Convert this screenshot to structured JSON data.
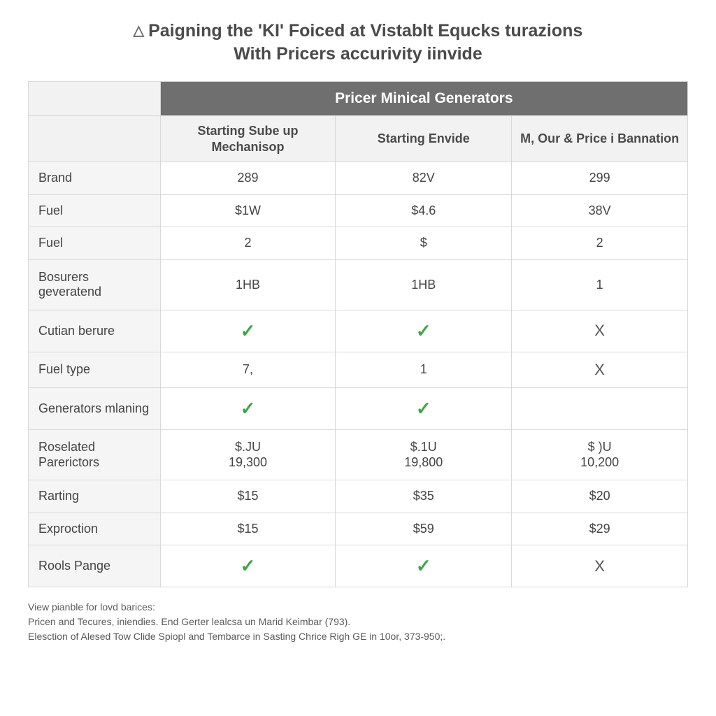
{
  "title": {
    "line1": "Paigning the 'KI' Foiced at Vistablt Equcks turazions",
    "line2": "With Pricers accurivity iinvide",
    "icon_name": "warning-triangle"
  },
  "table": {
    "type": "table",
    "colors": {
      "background": "#ffffff",
      "super_header_bg": "#6f6f6f",
      "super_header_text": "#ffffff",
      "sub_header_bg": "#f2f2f2",
      "rowlabel_bg": "#f5f5f5",
      "border": "#d9d9d9",
      "body_text": "#444444",
      "check": "#3fa644",
      "cross": "#555555"
    },
    "fontsizes": {
      "super_header": 21,
      "sub_header": 18,
      "body": 18,
      "title": 25,
      "footnote": 14
    },
    "column_widths_pct": [
      20,
      26.6,
      26.7,
      26.7
    ],
    "super_header": "Pricer Minical Generators",
    "sub_headers": [
      "Starting Sube up Mechanisop",
      "Starting Envide",
      "M, Our & Price i Bannation"
    ],
    "rows": [
      {
        "label": "Brand",
        "cells": [
          "289",
          "82V",
          "299"
        ]
      },
      {
        "label": "Fuel",
        "cells": [
          "$1W",
          "$4.6",
          "38V"
        ]
      },
      {
        "label": "Fuel",
        "cells": [
          "2",
          "$",
          "2"
        ]
      },
      {
        "label": "Bosurers geveratend",
        "cells": [
          "1HB",
          "1HB",
          "1"
        ]
      },
      {
        "label": "Cutian berure",
        "cells": [
          "check",
          "check",
          "cross"
        ]
      },
      {
        "label": "Fuel type",
        "cells": [
          "7,",
          "1",
          "cross"
        ]
      },
      {
        "label": "Generators mlaning",
        "cells": [
          "check",
          "check",
          ""
        ]
      },
      {
        "label": "Roselated Parerictors",
        "cells": [
          [
            "$.JU",
            "19,300"
          ],
          [
            "$.1U",
            "19,800"
          ],
          [
            "$ )U",
            "10,200"
          ]
        ]
      },
      {
        "label": "Rarting",
        "cells": [
          "$15",
          "$35",
          "$20"
        ]
      },
      {
        "label": "Exproction",
        "cells": [
          "$15",
          "$59",
          "$29"
        ]
      },
      {
        "label": "Rools Pange",
        "cells": [
          "check",
          "check",
          "cross"
        ]
      }
    ]
  },
  "footnotes": [
    "View pianble for lovd barices:",
    "Pricen and Tecures, iniendies. End Gerter lealcsa un Marid Keimbar (793).",
    "Elesction of Alesed Tow Clide Spiopl and Tembarce in Sasting Chrice Righ GE in 10or, 373-950;."
  ]
}
